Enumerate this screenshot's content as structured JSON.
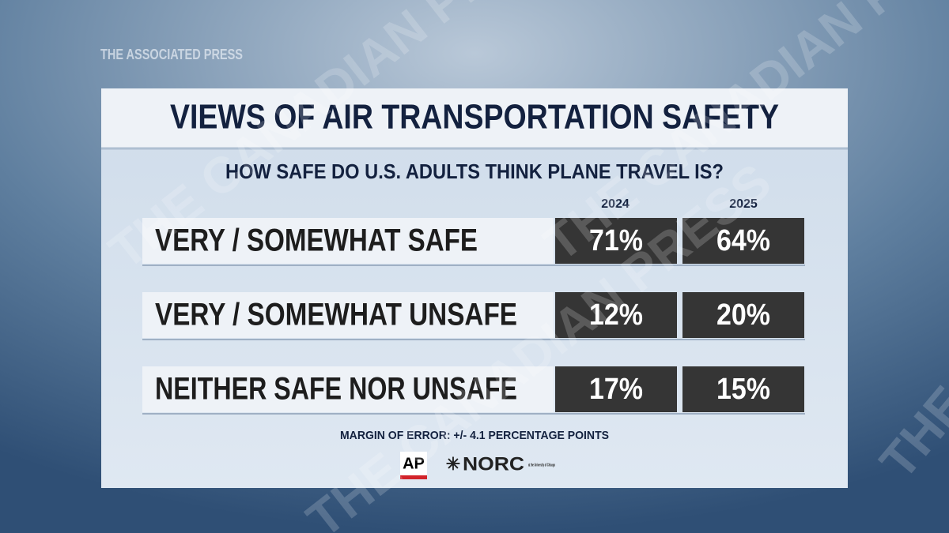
{
  "source": "THE ASSOCIATED PRESS",
  "watermark": "THE CANADIAN PRESS",
  "header": {
    "title": "VIEWS OF AIR TRANSPORTATION SAFETY",
    "subtitle": "HOW SAFE DO U.S. ADULTS THINK PLANE TRAVEL IS?"
  },
  "table": {
    "columns": [
      "2024",
      "2025"
    ],
    "rows": [
      [
        "VERY / SOMEWHAT SAFE",
        "71%",
        "64%"
      ],
      [
        "VERY / SOMEWHAT UNSAFE",
        "12%",
        "20%"
      ],
      [
        "NEITHER SAFE NOR UNSAFE",
        "17%",
        "15%"
      ]
    ]
  },
  "footer": {
    "note": "MARGIN OF ERROR: +/- 4.1 PERCENTAGE POINTS",
    "logos": {
      "ap": "AP",
      "norc": "NORC",
      "norc_sub": "at the University of Chicago"
    }
  }
}
